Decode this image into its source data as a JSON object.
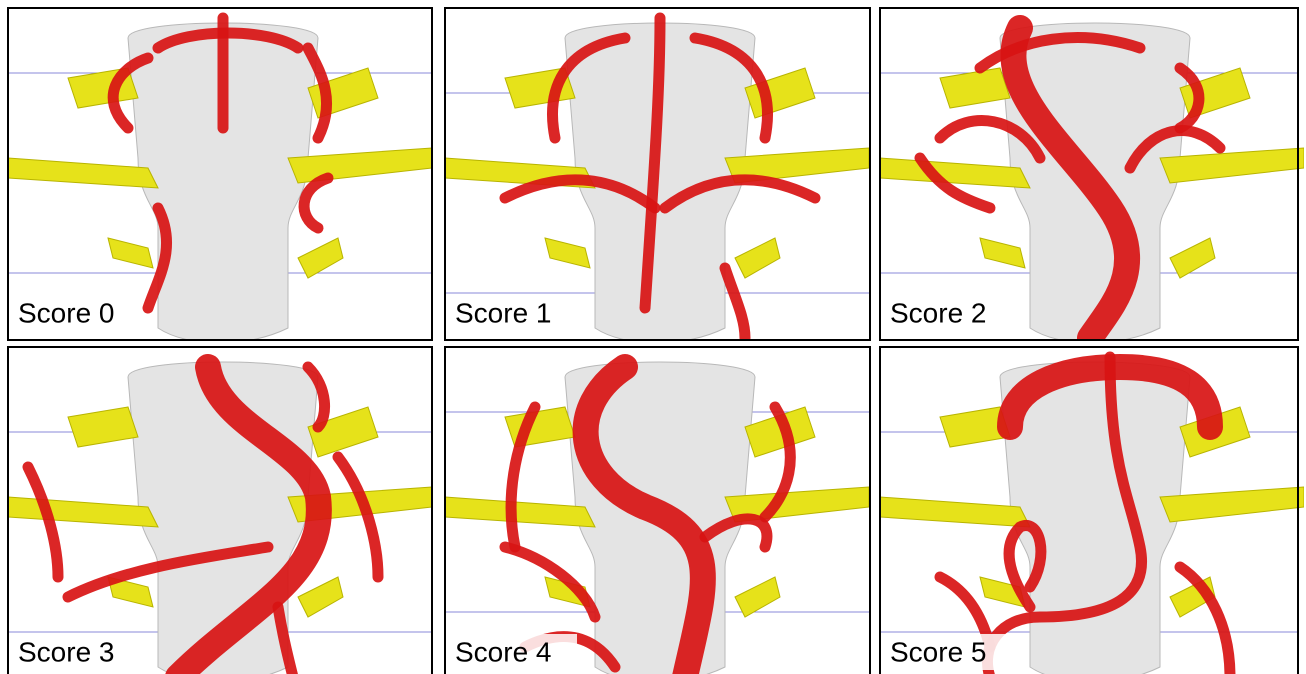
{
  "panels": [
    {
      "label": "Score 0"
    },
    {
      "label": "Score 1"
    },
    {
      "label": "Score 2"
    },
    {
      "label": "Score 3"
    },
    {
      "label": "Score 4"
    },
    {
      "label": "Score 5"
    }
  ]
}
